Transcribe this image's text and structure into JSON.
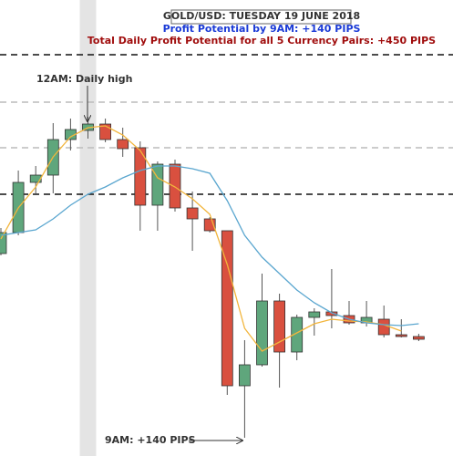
{
  "chart_data": {
    "type": "candlestick",
    "title": "GOLD/USD: TUESDAY 19 JUNE 2018",
    "subtitle": "Profit Potential by 9AM: +140 PIPS",
    "note": "Total Daily Profit Potential for all 5 Currency Pairs: +450 PIPS",
    "annotations": [
      "12AM: Daily high",
      "9AM: +140 PIPS"
    ],
    "open": [
      222,
      245,
      300,
      308,
      347,
      357,
      364,
      347,
      338,
      275,
      320,
      272,
      260,
      247,
      77,
      100,
      170,
      114,
      152,
      158,
      154,
      146,
      150,
      133,
      131
    ],
    "high": [
      250,
      313,
      318,
      365,
      370,
      372,
      370,
      360,
      345,
      323,
      325,
      290,
      262,
      247,
      127,
      200,
      178,
      155,
      162,
      205,
      170,
      170,
      165,
      150,
      134
    ],
    "low": [
      220,
      242,
      288,
      288,
      335,
      348,
      344,
      328,
      247,
      247,
      268,
      225,
      245,
      67,
      20,
      98,
      75,
      105,
      132,
      140,
      144,
      142,
      130,
      130,
      126
    ],
    "close": [
      245,
      300,
      308,
      347,
      358,
      364,
      347,
      337,
      275,
      320,
      272,
      260,
      247,
      77,
      100,
      170,
      114,
      152,
      158,
      154,
      146,
      152,
      133,
      131,
      128
    ],
    "up_color": "#5fa67c",
    "down_color": "#d9503f",
    "series": [
      {
        "color": "#f2b53c",
        "values": [
          238,
          272,
          295,
          328,
          350,
          360,
          362,
          352,
          335,
          305,
          295,
          282,
          265,
          210,
          140,
          115,
          125,
          135,
          145,
          150,
          148,
          147,
          144,
          137,
          null
        ]
      },
      {
        "color": "#5aa6cf",
        "values": [
          242,
          245,
          248,
          260,
          275,
          287,
          295,
          305,
          313,
          318,
          318,
          315,
          310,
          280,
          242,
          218,
          200,
          182,
          168,
          157,
          150,
          146,
          144,
          143,
          145
        ]
      }
    ],
    "levels": [
      {
        "value": 440,
        "color": "#111111"
      },
      {
        "value": 388,
        "color": "#bbbbbb"
      },
      {
        "value": 338,
        "color": "#bbbbbb"
      },
      {
        "value": 287,
        "color": "#111111"
      }
    ],
    "highlight": 5
  }
}
